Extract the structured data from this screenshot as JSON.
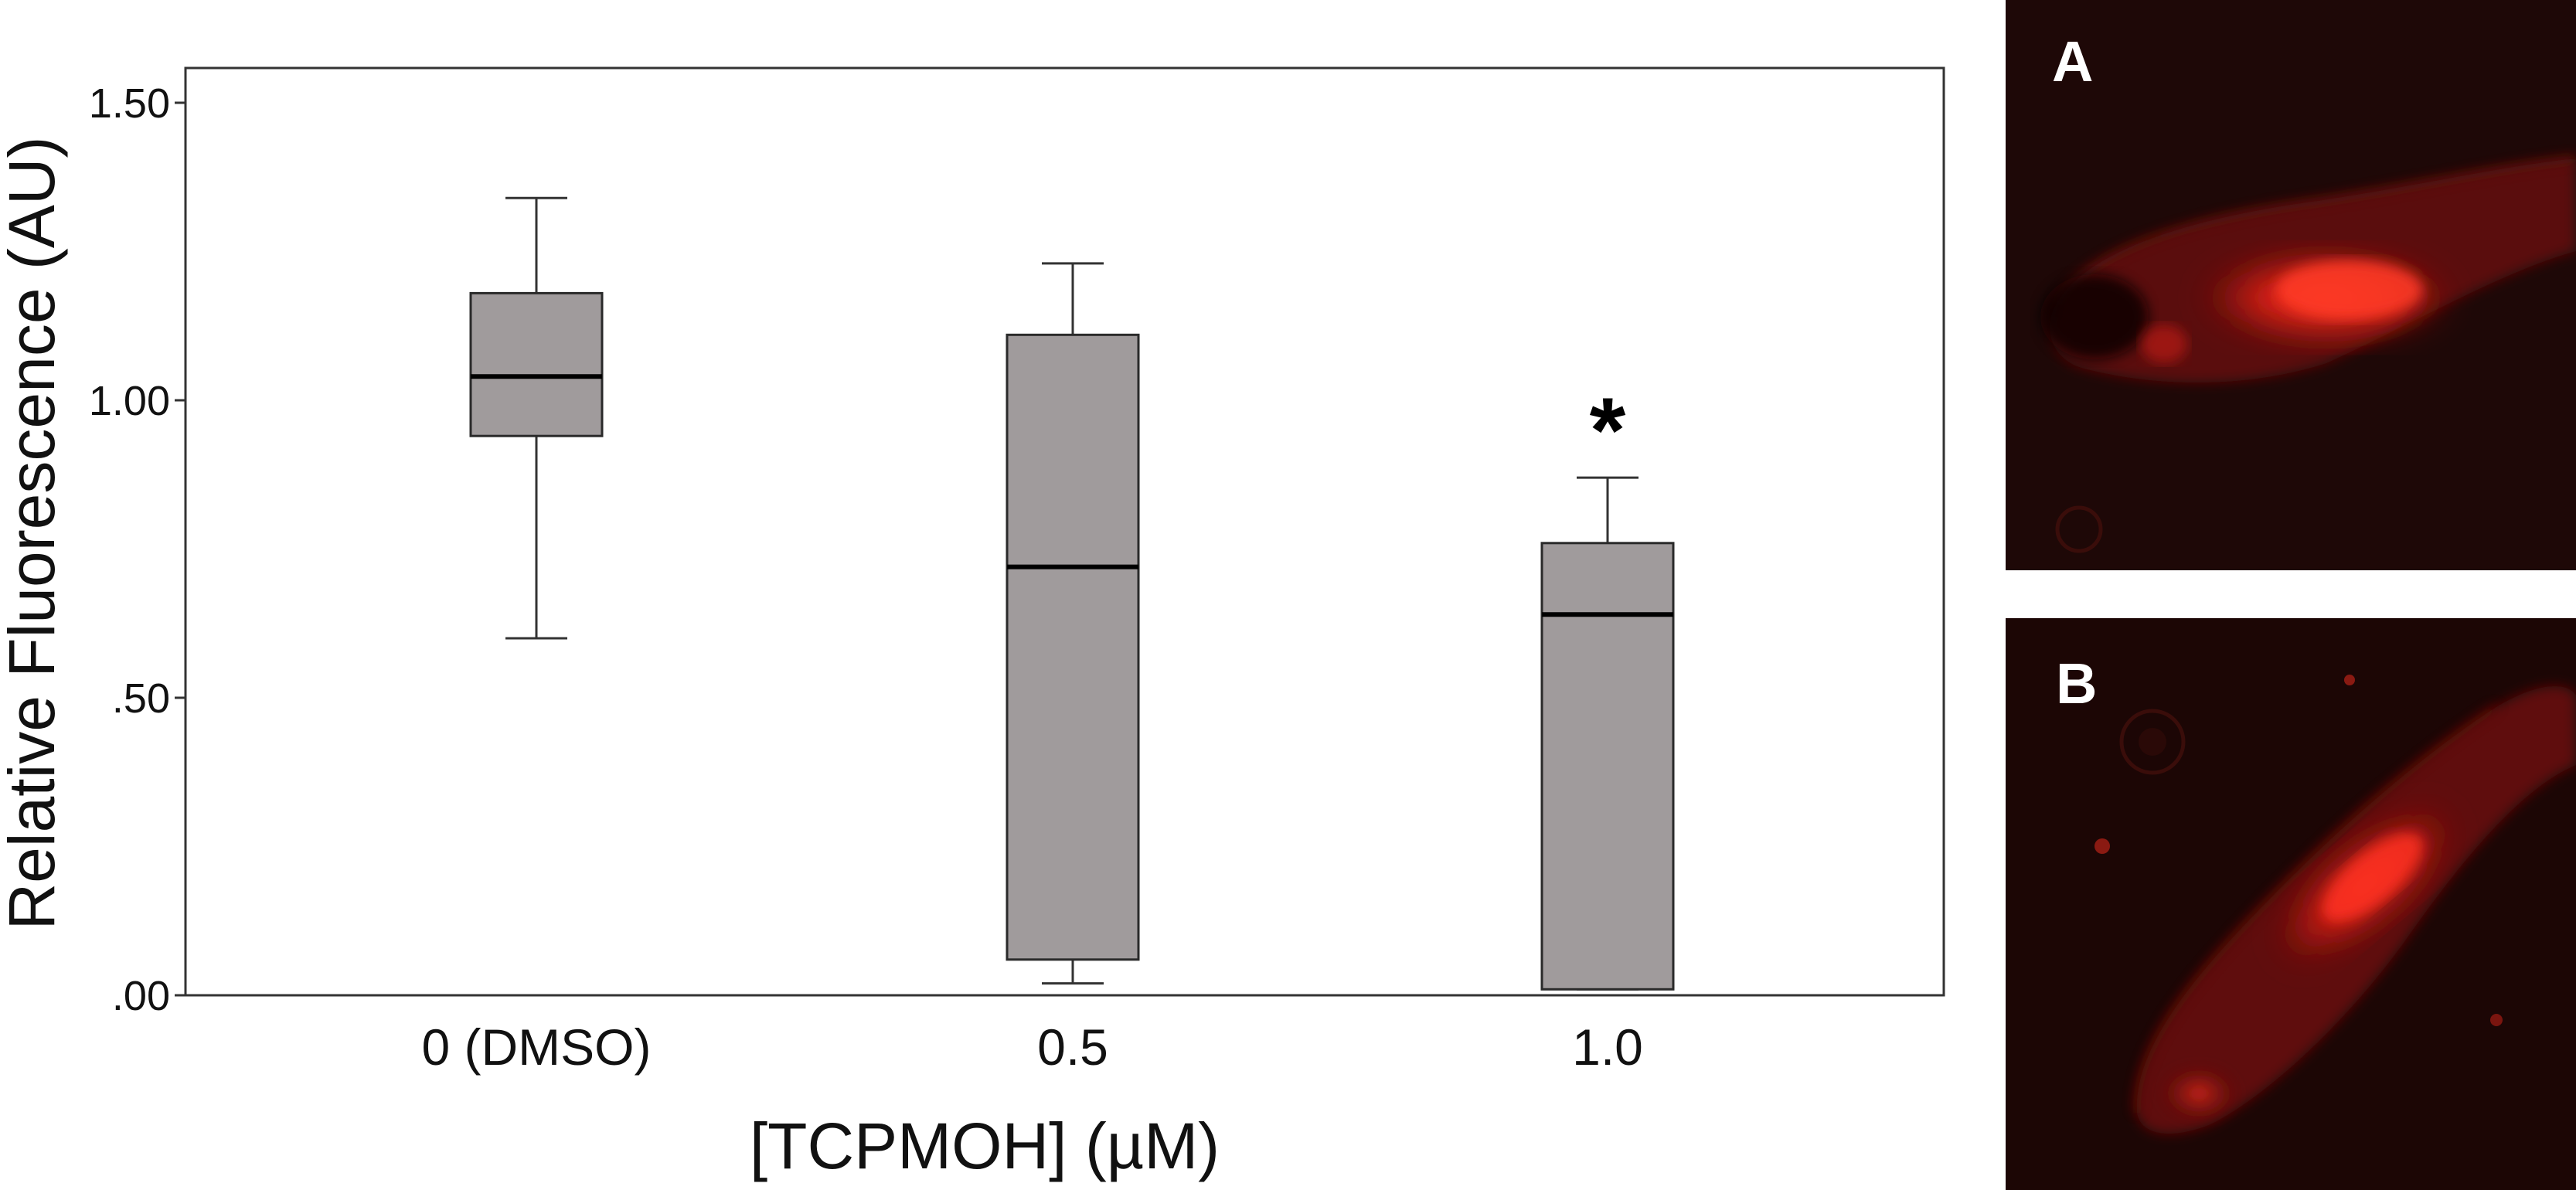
{
  "chart_data": {
    "type": "box",
    "ylabel": "Relative Fluorescence (AU)",
    "xlabel": "[TCPMOH] (µM)",
    "ylim": [
      0,
      1.6
    ],
    "yticks": [
      0,
      0.5,
      1.0,
      1.5
    ],
    "ytick_labels": [
      ".00",
      ".50",
      "1.00",
      "1.50"
    ],
    "grid": false,
    "categories": [
      "0 (DMSO)",
      "0.5",
      "1.0"
    ],
    "boxes": [
      {
        "category": "0 (DMSO)",
        "whisker_low": 0.6,
        "q1": 0.94,
        "median": 1.04,
        "q3": 1.18,
        "whisker_high": 1.34,
        "annotation": ""
      },
      {
        "category": "0.5",
        "whisker_low": 0.02,
        "q1": 0.06,
        "median": 0.72,
        "q3": 1.11,
        "whisker_high": 1.23,
        "annotation": ""
      },
      {
        "category": "1.0",
        "whisker_low": 0.01,
        "q1": 0.01,
        "median": 0.64,
        "q3": 0.76,
        "whisker_high": 0.87,
        "annotation": "*"
      }
    ],
    "colors": {
      "box_fill": "#a09b9c",
      "box_stroke": "#2a2a2a",
      "median": "#000000"
    }
  },
  "panels": [
    {
      "letter": "A",
      "colors": {
        "background": "#1a0706",
        "tissue": "#6e1410",
        "glow": "#ff2a1c"
      }
    },
    {
      "letter": "B",
      "colors": {
        "background": "#1c0605",
        "tissue": "#6a1310",
        "glow": "#f4261a"
      }
    }
  ]
}
